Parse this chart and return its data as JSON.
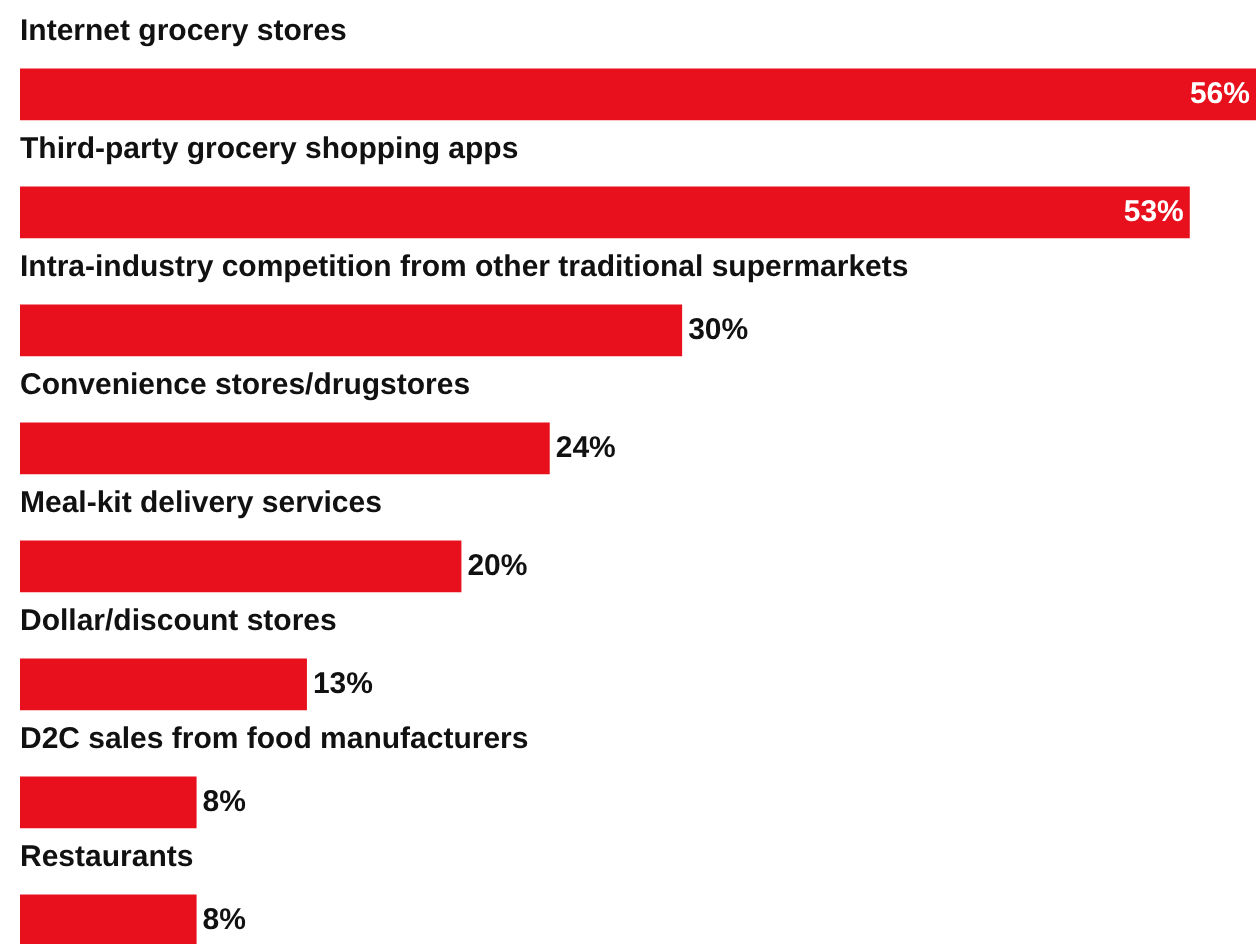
{
  "chart_data": {
    "type": "bar",
    "orientation": "horizontal",
    "categories": [
      "Internet grocery stores",
      "Third-party grocery shopping apps",
      "Intra-industry competition from other traditional supermarkets",
      "Convenience stores/drugstores",
      "Meal-kit delivery services",
      "Dollar/discount stores",
      "D2C sales from food manufacturers",
      "Restaurants"
    ],
    "values": [
      56,
      53,
      30,
      24,
      20,
      13,
      8,
      8
    ],
    "value_labels": [
      "56%",
      "53%",
      "30%",
      "24%",
      "20%",
      "13%",
      "8%",
      "8%"
    ],
    "color": "#e8101c"
  }
}
